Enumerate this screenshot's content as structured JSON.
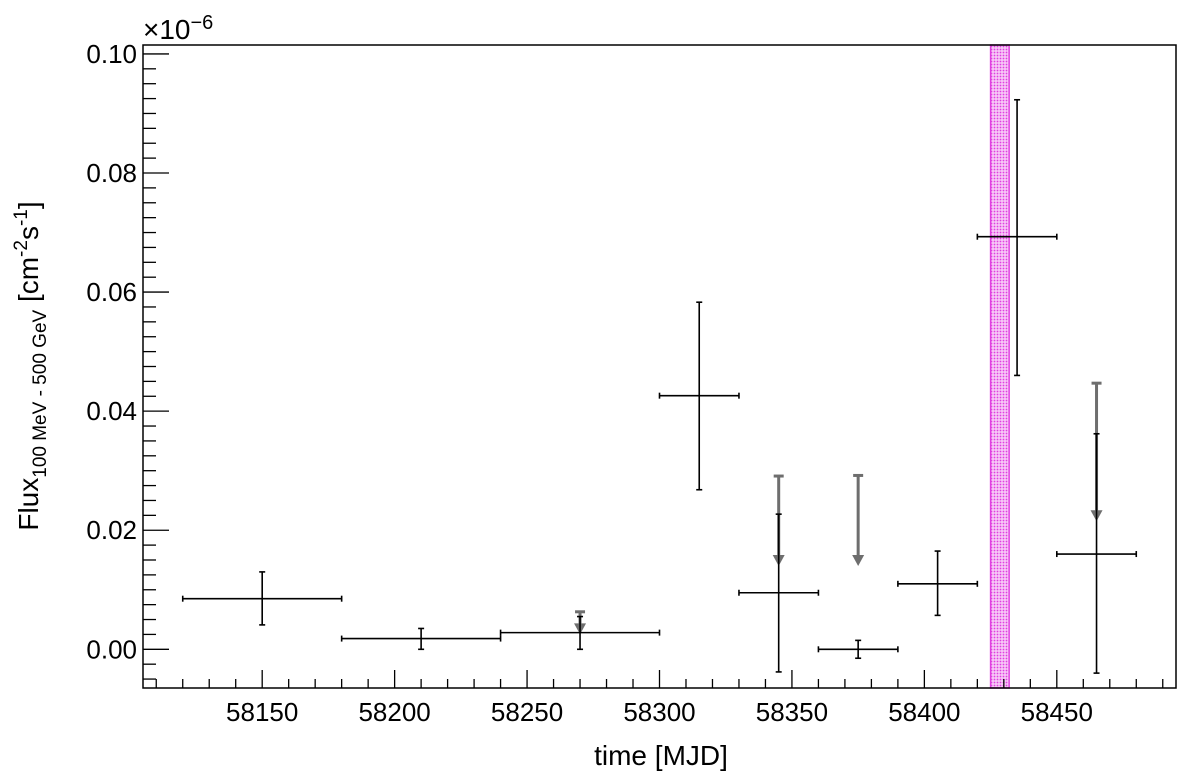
{
  "chart_data": {
    "type": "scatter",
    "xlabel": "time [MJD]",
    "ylabel": {
      "main": "Flux",
      "sub": "100 MeV - 500 GeV",
      "unit_open": " [cm",
      "sup1": "-2",
      "unit_mid": "s",
      "sup2": "-1",
      "unit_close": "]"
    },
    "y_multiplier": {
      "base": "×10",
      "exponent": "−6"
    },
    "xlim": [
      58105,
      58495
    ],
    "ylim": [
      -0.0065,
      0.1015
    ],
    "x_tick_labels": [
      "58150",
      "58200",
      "58250",
      "58300",
      "58350",
      "58400",
      "58450"
    ],
    "y_tick_labels": [
      "0.00",
      "0.02",
      "0.04",
      "0.06",
      "0.08",
      "0.10"
    ],
    "grid": false,
    "highlight_band": {
      "x": [
        58425,
        58432
      ],
      "color": "#e040e0"
    },
    "points": [
      {
        "x": 58150,
        "xerr": 30,
        "y": 0.0085,
        "ylow": 0.0041,
        "yhigh": 0.013
      },
      {
        "x": 58210,
        "xerr": 30,
        "y": 0.0018,
        "ylow": 0.0,
        "yhigh": 0.0035
      },
      {
        "x": 58270,
        "xerr": 30,
        "y": 0.0028,
        "ylow": 0.0,
        "yhigh": 0.0055
      },
      {
        "x": 58315,
        "xerr": 15,
        "y": 0.0426,
        "ylow": 0.0268,
        "yhigh": 0.0583
      },
      {
        "x": 58345,
        "xerr": 15,
        "y": 0.0095,
        "ylow": -0.0038,
        "yhigh": 0.0227
      },
      {
        "x": 58375,
        "xerr": 15,
        "y": 0.0,
        "ylow": -0.0015,
        "yhigh": 0.0015
      },
      {
        "x": 58405,
        "xerr": 15,
        "y": 0.011,
        "ylow": 0.0057,
        "yhigh": 0.0165
      },
      {
        "x": 58435,
        "xerr": 15,
        "y": 0.0693,
        "ylow": 0.046,
        "yhigh": 0.0923
      },
      {
        "x": 58465,
        "xerr": 15,
        "y": 0.016,
        "ylow": -0.004,
        "yhigh": 0.0362
      }
    ],
    "upper_limits": [
      {
        "x": 58270,
        "y": 0.0063,
        "arrow_to": 0.0025
      },
      {
        "x": 58345,
        "y": 0.0291,
        "arrow_to": 0.014
      },
      {
        "x": 58375,
        "y": 0.0292,
        "arrow_to": 0.014
      },
      {
        "x": 58465,
        "y": 0.0447,
        "arrow_to": 0.0215
      }
    ],
    "colors": {
      "points": "#000000",
      "upper_limits": "#6e6e6e",
      "band": "#e040e0"
    }
  }
}
